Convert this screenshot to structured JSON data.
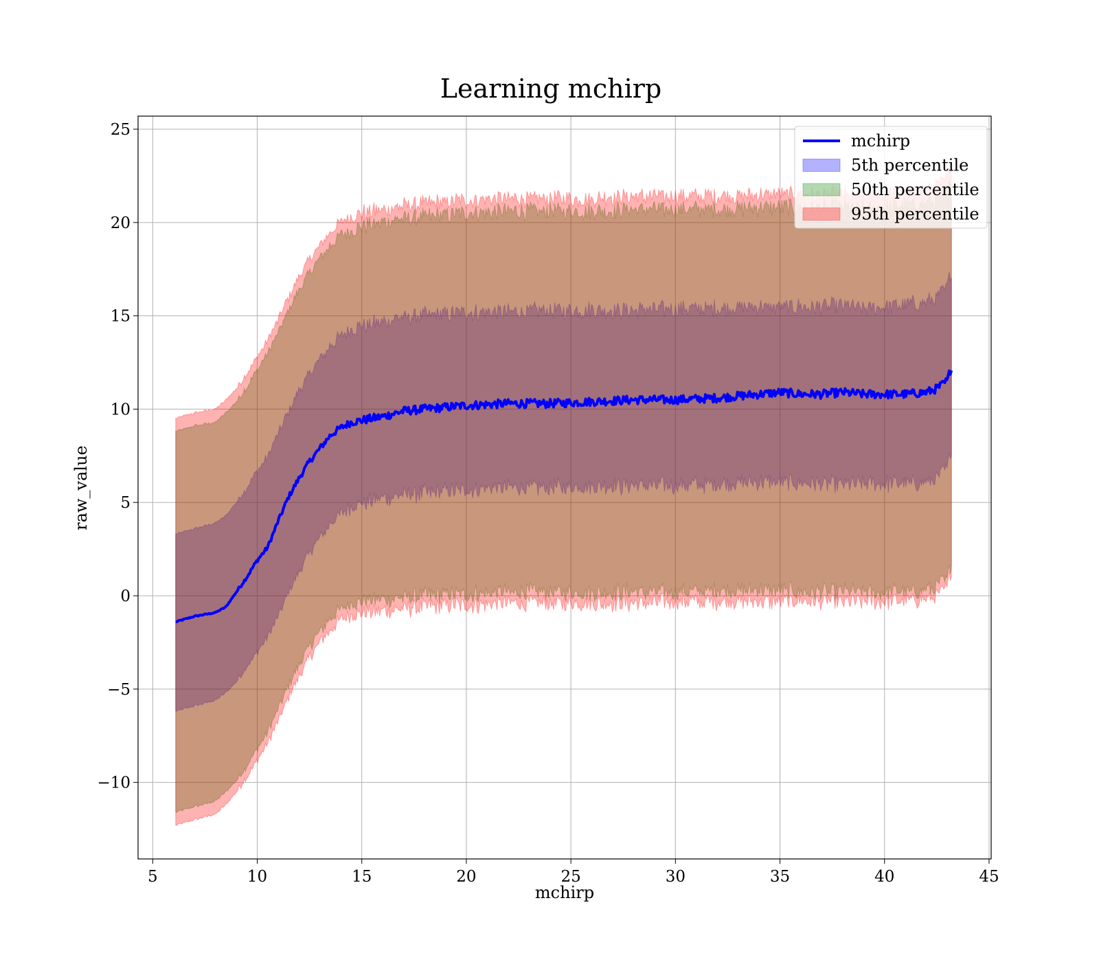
{
  "chart_data": {
    "type": "area",
    "title": "Learning mchirp",
    "xlabel": "mchirp",
    "ylabel": "raw_value",
    "xlim": [
      4.3,
      45.1
    ],
    "ylim": [
      -14.1,
      25.7
    ],
    "xticks": [
      5,
      10,
      15,
      20,
      25,
      30,
      35,
      40,
      45
    ],
    "xtick_labels": [
      "5",
      "10",
      "15",
      "20",
      "25",
      "30",
      "35",
      "40",
      "45"
    ],
    "yticks": [
      -10,
      -5,
      0,
      5,
      10,
      15,
      20,
      25
    ],
    "ytick_labels": [
      "−10",
      "−5",
      "0",
      "5",
      "10",
      "15",
      "20",
      "25"
    ],
    "grid": true,
    "legend_position": "top-right",
    "x": [
      6.1,
      7.0,
      8.0,
      8.5,
      9.0,
      9.5,
      10.0,
      10.5,
      11.0,
      11.5,
      12.0,
      12.5,
      13.0,
      13.5,
      14.0,
      14.5,
      15.0,
      16.0,
      17.0,
      18.0,
      19.0,
      20.0,
      22.0,
      24.0,
      26.0,
      28.0,
      30.0,
      32.0,
      34.0,
      35.0,
      36.0,
      37.0,
      38.0,
      39.0,
      40.0,
      41.0,
      42.0,
      42.5,
      43.0,
      43.2
    ],
    "series": [
      {
        "name": "mchirp",
        "kind": "line",
        "color": "#0000ff",
        "values": [
          -1.4,
          -1.1,
          -0.9,
          -0.6,
          0.2,
          1.0,
          1.9,
          2.6,
          4.0,
          5.3,
          6.3,
          7.2,
          7.9,
          8.6,
          9.0,
          9.3,
          9.4,
          9.6,
          9.9,
          10.0,
          10.1,
          10.2,
          10.3,
          10.3,
          10.4,
          10.5,
          10.5,
          10.6,
          10.8,
          10.9,
          10.8,
          10.8,
          10.9,
          10.8,
          10.8,
          10.8,
          10.9,
          11.1,
          11.5,
          12.3
        ]
      },
      {
        "name": "5th percentile",
        "kind": "band",
        "color": "#0000ff",
        "opacity": 0.3,
        "lower": [
          -6.2,
          -5.9,
          -5.6,
          -5.2,
          -4.6,
          -3.8,
          -3.0,
          -2.2,
          -1.1,
          0.2,
          1.3,
          2.3,
          3.1,
          3.9,
          4.4,
          4.8,
          5.0,
          5.2,
          5.4,
          5.5,
          5.6,
          5.7,
          5.8,
          5.8,
          5.9,
          5.9,
          5.9,
          6.0,
          6.1,
          6.1,
          6.0,
          6.0,
          6.0,
          6.0,
          6.0,
          6.0,
          6.1,
          6.3,
          6.8,
          8.0
        ],
        "upper": [
          3.3,
          3.6,
          3.9,
          4.3,
          5.0,
          5.8,
          6.7,
          7.5,
          8.7,
          9.9,
          11.0,
          11.9,
          12.7,
          13.4,
          13.9,
          14.3,
          14.5,
          14.7,
          14.9,
          15.0,
          15.1,
          15.2,
          15.2,
          15.3,
          15.3,
          15.3,
          15.4,
          15.4,
          15.5,
          15.5,
          15.5,
          15.5,
          15.5,
          15.4,
          15.5,
          15.6,
          15.7,
          16.0,
          16.5,
          17.5
        ]
      },
      {
        "name": "50th percentile",
        "kind": "band",
        "color": "#008000",
        "opacity": 0.3,
        "lower": [
          -11.6,
          -11.3,
          -11.0,
          -10.5,
          -9.9,
          -9.1,
          -8.2,
          -7.3,
          -6.1,
          -4.8,
          -3.7,
          -2.7,
          -1.9,
          -1.2,
          -0.7,
          -0.4,
          -0.3,
          -0.2,
          -0.1,
          0.0,
          0.1,
          0.1,
          0.2,
          0.2,
          0.2,
          0.2,
          0.2,
          0.3,
          0.3,
          0.3,
          0.2,
          0.2,
          0.2,
          0.2,
          0.2,
          0.2,
          0.3,
          0.5,
          0.9,
          2.0
        ],
        "upper": [
          8.8,
          9.1,
          9.3,
          9.8,
          10.4,
          11.2,
          12.1,
          13.0,
          14.1,
          15.3,
          16.4,
          17.3,
          18.1,
          18.8,
          19.3,
          19.6,
          19.8,
          20.0,
          20.2,
          20.3,
          20.4,
          20.5,
          20.6,
          20.6,
          20.6,
          20.7,
          20.7,
          20.7,
          20.8,
          20.8,
          20.8,
          20.8,
          20.8,
          20.7,
          20.8,
          20.9,
          21.0,
          21.2,
          21.6,
          22.5
        ]
      },
      {
        "name": "95th percentile",
        "kind": "band",
        "color": "#ff0000",
        "opacity": 0.3,
        "lower": [
          -12.3,
          -12.0,
          -11.7,
          -11.2,
          -10.5,
          -9.7,
          -8.8,
          -7.9,
          -6.7,
          -5.4,
          -4.3,
          -3.3,
          -2.5,
          -1.8,
          -1.3,
          -1.0,
          -0.9,
          -0.8,
          -0.7,
          -0.6,
          -0.5,
          -0.5,
          -0.4,
          -0.4,
          -0.4,
          -0.4,
          -0.3,
          -0.3,
          -0.3,
          -0.3,
          -0.3,
          -0.3,
          -0.3,
          -0.3,
          -0.3,
          -0.3,
          -0.2,
          0.0,
          0.4,
          1.4
        ],
        "upper": [
          9.5,
          9.8,
          10.0,
          10.5,
          11.1,
          11.9,
          12.8,
          13.7,
          14.8,
          16.0,
          17.1,
          18.0,
          18.8,
          19.5,
          20.0,
          20.3,
          20.5,
          20.7,
          20.9,
          21.0,
          21.1,
          21.2,
          21.3,
          21.3,
          21.3,
          21.4,
          21.4,
          21.4,
          21.5,
          21.5,
          21.5,
          21.5,
          21.5,
          21.4,
          21.5,
          21.6,
          21.7,
          21.9,
          22.3,
          23.3
        ]
      }
    ],
    "legend": [
      {
        "label": "mchirp",
        "kind": "line",
        "color": "#0000ff"
      },
      {
        "label": "5th percentile",
        "kind": "patch",
        "color": "#0000ff"
      },
      {
        "label": "50th percentile",
        "kind": "patch",
        "color": "#008000"
      },
      {
        "label": "95th percentile",
        "kind": "patch",
        "color": "#ff0000"
      }
    ]
  }
}
